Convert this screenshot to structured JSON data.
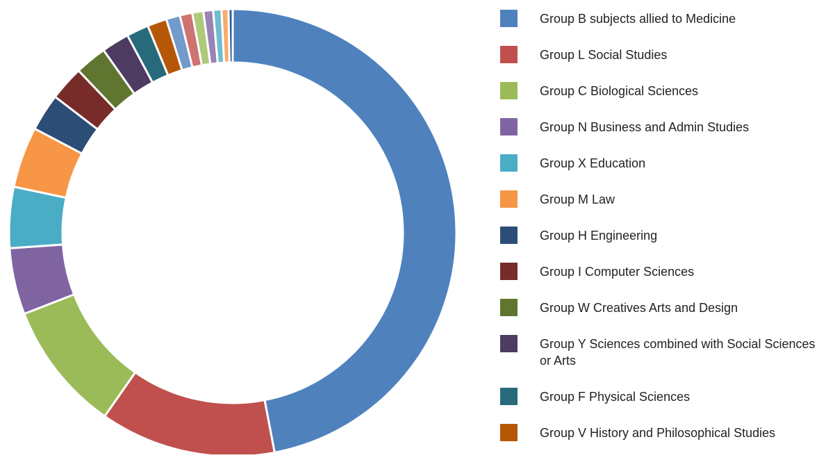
{
  "chart_data": {
    "type": "donut",
    "categories": [
      "Group B subjects allied to Medicine",
      "Group L Social Studies",
      "Group C Biological Sciences",
      "Group N Business and Admin Studies",
      "Group X Education",
      "Group M Law",
      "Group H Engineering",
      "Group I Computer Sciences",
      "Group W Creatives Arts and Design",
      "Group Y Sciences combined with Social Sciences or Arts",
      "Group F Physical Sciences",
      "Group V History and Philosophical Studies",
      null,
      null,
      null,
      null,
      null,
      null,
      null
    ],
    "values": [
      47,
      12.7,
      9.4,
      4.8,
      4.4,
      4.4,
      2.7,
      2.5,
      2.3,
      2.0,
      1.6,
      1.4,
      1.0,
      0.9,
      0.8,
      0.7,
      0.6,
      0.5,
      0.3
    ],
    "colors": [
      "#4f81bd",
      "#c0504d",
      "#9bbb59",
      "#8064a2",
      "#4bacc6",
      "#f79646",
      "#2c4d75",
      "#772c2a",
      "#5f7530",
      "#4d3b62",
      "#276a7c",
      "#b65708",
      "#729aca",
      "#cd7371",
      "#afc97a",
      "#9983b5",
      "#6fbdd1",
      "#f9ab6b",
      "#2c5d98"
    ],
    "legend": "right"
  }
}
